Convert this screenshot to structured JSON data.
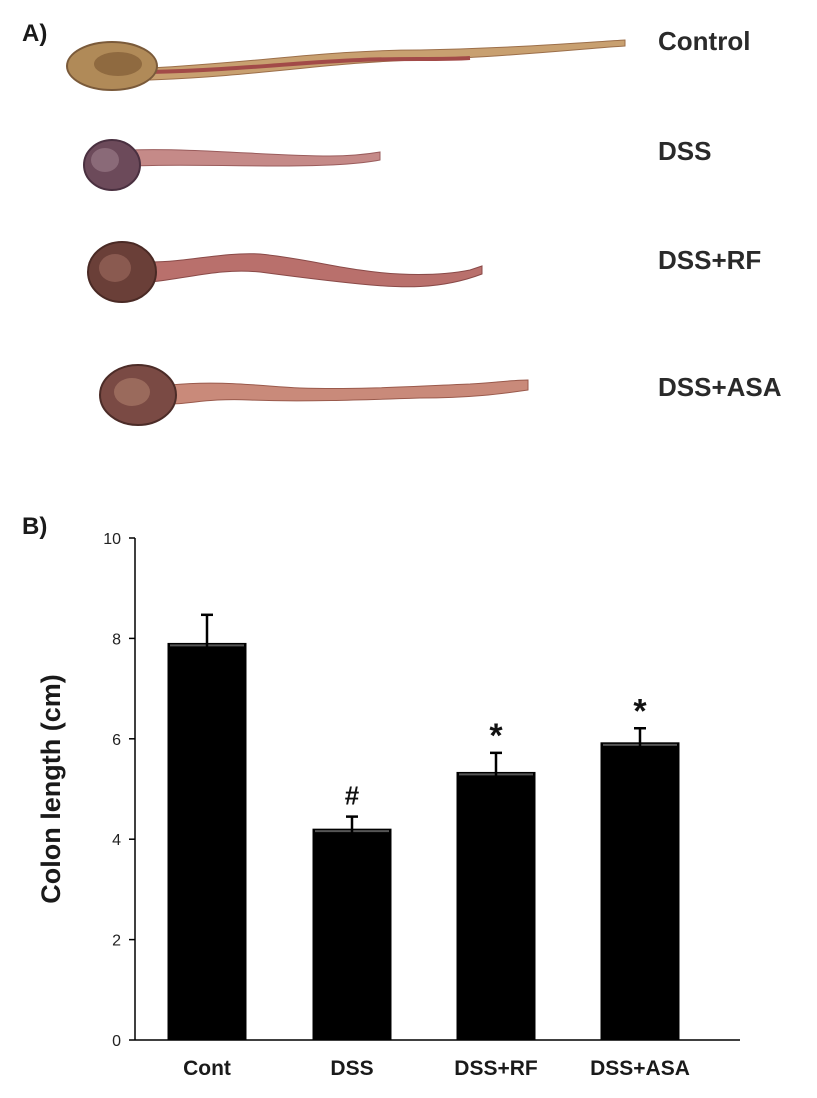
{
  "panel_a": {
    "label": "A)",
    "specimens": [
      {
        "name": "Control"
      },
      {
        "name": "DSS"
      },
      {
        "name": "DSS+RF"
      },
      {
        "name": "DSS+ASA"
      }
    ]
  },
  "panel_b": {
    "label": "B)"
  },
  "colors": {
    "bar": "#000000",
    "tissue_light": "#c99a6b",
    "tissue_dark": "#6b3b3b"
  },
  "chart_data": {
    "type": "bar",
    "title": "",
    "xlabel": "",
    "ylabel": "Colon length (cm)",
    "ylim": [
      0,
      10
    ],
    "yticks": [
      "0",
      "2",
      "4",
      "6",
      "8",
      "10"
    ],
    "categories": [
      "Cont",
      "DSS",
      "DSS+RF",
      "DSS+ASA"
    ],
    "values": [
      7.9,
      4.2,
      5.33,
      5.92
    ],
    "errors": [
      0.57,
      0.25,
      0.39,
      0.29
    ],
    "annotations": [
      "",
      "#",
      "*",
      "*"
    ]
  }
}
